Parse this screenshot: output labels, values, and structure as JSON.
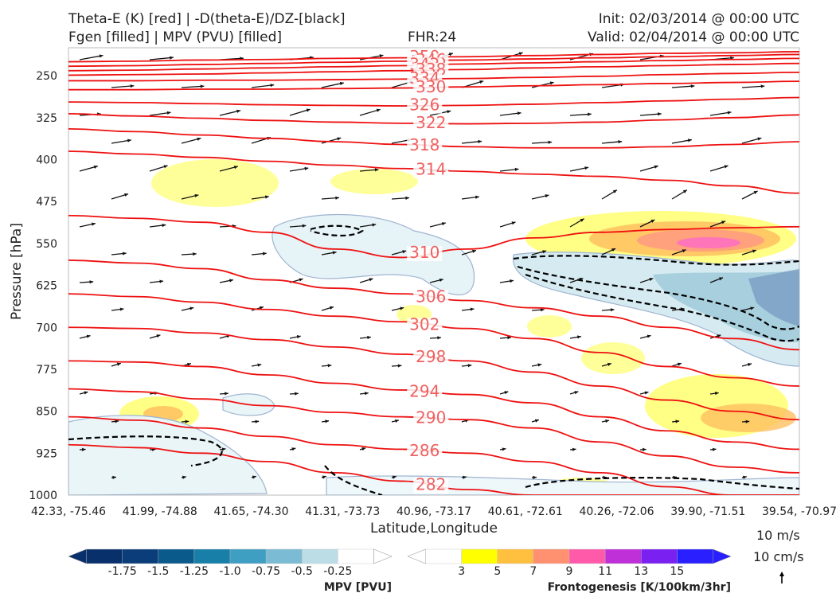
{
  "header": {
    "title_line1": "Theta-E (K) [red] | -D(theta-E)/DZ-[black]",
    "title_line2": "Fgen [filled] | MPV (PVU) [filled]",
    "fhr": "FHR:24",
    "init": "Init: 02/03/2014 @ 00:00 UTC",
    "valid": "Valid: 02/04/2014 @ 00:00 UTC"
  },
  "chart_data": {
    "type": "cross-section",
    "xlabel": "Latitude,Longitude",
    "ylabel": "Pressure [hPa]",
    "y_ticks": [
      250,
      325,
      400,
      475,
      550,
      625,
      700,
      775,
      850,
      925,
      1000
    ],
    "ylim": [
      200,
      1000
    ],
    "x_ticks": [
      "42.33, -75.46",
      "41.99, -74.88",
      "41.65, -74.30",
      "41.31, -73.73",
      "40.96, -73.17",
      "40.61, -72.61",
      "40.26, -72.06",
      "39.90, -71.51",
      "39.54, -70.97"
    ],
    "theta_e_contours": [
      {
        "label": "350",
        "p": [
          225,
          224,
          222,
          221,
          219,
          218,
          216,
          214,
          212,
          210,
          209,
          207
        ]
      },
      {
        "label": "346",
        "p": [
          233,
          232,
          230,
          228,
          226,
          224,
          222,
          220,
          218,
          216,
          214,
          212
        ]
      },
      {
        "label": "342",
        "p": [
          241,
          240,
          238,
          236,
          234,
          232,
          229,
          227,
          225,
          223,
          221,
          219
        ]
      },
      {
        "label": "338",
        "p": [
          249,
          248,
          247,
          245,
          243,
          241,
          239,
          236,
          234,
          232,
          230,
          228
        ]
      },
      {
        "label": "334",
        "p": [
          259,
          259,
          258,
          258,
          257,
          256,
          255,
          253,
          251,
          248,
          246,
          244
        ]
      },
      {
        "label": "330",
        "p": [
          275,
          275,
          274,
          274,
          273,
          272,
          270,
          268,
          266,
          264,
          262,
          260
        ]
      },
      {
        "label": "326",
        "p": [
          297,
          298,
          300,
          302,
          303,
          304,
          303,
          301,
          298,
          295,
          292,
          289
        ]
      },
      {
        "label": "322",
        "p": [
          318,
          322,
          326,
          330,
          333,
          335,
          336,
          335,
          333,
          329,
          325,
          320
        ]
      },
      {
        "label": "318",
        "p": [
          345,
          350,
          356,
          362,
          368,
          373,
          377,
          379,
          379,
          377,
          373,
          368
        ]
      },
      {
        "label": "314",
        "p": [
          385,
          390,
          396,
          403,
          410,
          416,
          421,
          426,
          430,
          437,
          447,
          460
        ]
      },
      {
        "label": "310",
        "p": [
          500,
          505,
          512,
          530,
          560,
          575,
          560,
          540,
          530,
          525,
          522,
          520
        ]
      },
      {
        "label": "306",
        "p": [
          580,
          585,
          595,
          615,
          630,
          640,
          652,
          665,
          680,
          700,
          720,
          740
        ]
      },
      {
        "label": "302",
        "p": [
          640,
          645,
          655,
          668,
          680,
          690,
          702,
          720,
          745,
          770,
          790,
          805
        ]
      },
      {
        "label": "298",
        "p": [
          700,
          702,
          710,
          722,
          735,
          748,
          760,
          780,
          805,
          830,
          850,
          865
        ]
      },
      {
        "label": "294",
        "p": [
          760,
          762,
          770,
          785,
          800,
          812,
          820,
          835,
          860,
          885,
          905,
          918
        ]
      },
      {
        "label": "290",
        "p": [
          810,
          815,
          828,
          840,
          852,
          860,
          865,
          880,
          905,
          930,
          950,
          960
        ]
      },
      {
        "label": "286",
        "p": [
          860,
          866,
          880,
          895,
          910,
          918,
          925,
          940,
          960,
          985,
          1000,
          1000
        ]
      },
      {
        "label": "282",
        "p": [
          910,
          915,
          925,
          940,
          960,
          975,
          990,
          1000,
          1000,
          1000,
          1000,
          1000
        ]
      }
    ],
    "mpv_colorbar": {
      "label": "MPV [PVU]",
      "ticks": [
        "-1.75",
        "-1.5",
        "-1.25",
        "-1.0",
        "-0.75",
        "-0.5",
        "-0.25"
      ],
      "colors": [
        "#08306b",
        "#0b3d7a",
        "#0a5a8c",
        "#1880a8",
        "#3f9fc2",
        "#7bbcd4",
        "#bcdde6",
        "#ffffff"
      ]
    },
    "fgen_colorbar": {
      "label": "Frontogenesis [K/100km/3hr]",
      "ticks": [
        "3",
        "5",
        "7",
        "9",
        "11",
        "13",
        "15"
      ],
      "colors": [
        "#ffffff",
        "#ffff00",
        "#ffc040",
        "#ff9070",
        "#ff5aaa",
        "#c030d8",
        "#7a20f0",
        "#2a20ff"
      ]
    }
  },
  "scale": {
    "wind": "10 m/s",
    "vertical": "10 cm/s"
  },
  "colors": {
    "theta_e": "#ee1111",
    "theta_e_label": "#f06060",
    "ddz": "#000000",
    "wind_vector": "#111111"
  }
}
